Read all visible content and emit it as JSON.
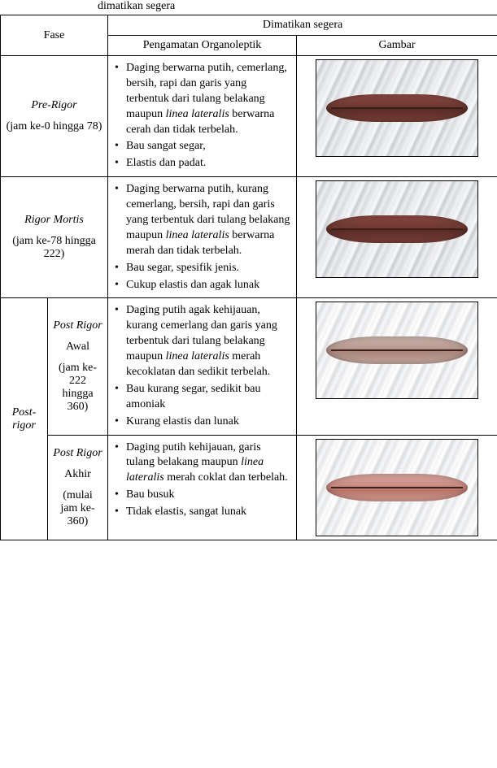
{
  "caption_fragment": "dimatikan segera",
  "header": {
    "phase": "Fase",
    "killed_immediately": "Dimatikan segera",
    "observation": "Pengamatan Organoleptik",
    "image": "Gambar"
  },
  "rows": {
    "pre_rigor": {
      "title_it": "Pre-Rigor",
      "sub": "(jam ke-0 hingga 78)",
      "obs": [
        "Daging berwarna putih, cemerlang, bersih, rapi dan garis yang terbentuk dari tulang belakang maupun <span class=\"it\">linea lateralis</span> berwarna cerah dan tidak terbelah.",
        "Bau sangat segar,",
        "Elastis dan padat."
      ]
    },
    "rigor_mortis": {
      "title_it": "Rigor Mortis",
      "sub": "(jam ke-78 hingga 222)",
      "obs": [
        "Daging berwarna putih, kurang cemerlang, bersih, rapi dan garis yang terbentuk dari tulang belakang maupun <span class=\"it\">linea lateralis</span> berwarna merah dan tidak terbelah.",
        "Bau segar, spesifik jenis.",
        "Cukup elastis dan agak lunak"
      ]
    },
    "post_rigor_label": {
      "title_it": "Post-rigor"
    },
    "post_rigor_awal": {
      "title_it": "Post Rigor",
      "title_plain": "Awal",
      "sub": "(jam ke-222 hingga 360)",
      "obs": [
        "Daging putih agak kehijauan, kurang cemerlang dan garis yang terbentuk dari tulang belakang maupun <span class=\"it\">linea lateralis</span> merah kecoklatan dan sedikit terbelah.",
        "Bau kurang segar, sedikit bau amoniak",
        "Kurang elastis dan lunak"
      ]
    },
    "post_rigor_akhir": {
      "title_it": "Post Rigor",
      "title_plain": "Akhir",
      "sub": "(mulai jam ke-360)",
      "obs": [
        "Daging putih kehijauan, garis tulang belakang maupun <span class=\"it\">linea lateralis</span> merah coklat dan terbelah.",
        "Bau busuk",
        "Tidak elastis, sangat lunak"
      ]
    }
  }
}
